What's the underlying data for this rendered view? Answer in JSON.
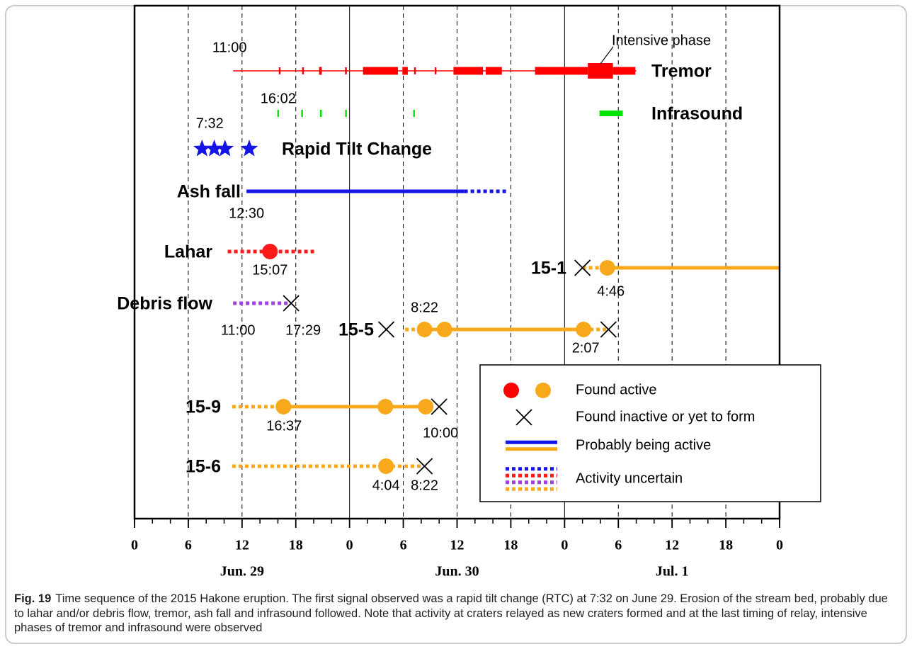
{
  "chart_data": {
    "type": "timeline",
    "xlim": [
      0,
      72
    ],
    "xticks": [
      0,
      6,
      12,
      18,
      {
        "value": 24,
        "label": "0"
      },
      {
        "value": 30,
        "label": "6"
      },
      {
        "value": 36,
        "label": "12"
      },
      {
        "value": 42,
        "label": "18"
      },
      {
        "value": 48,
        "label": "0"
      },
      {
        "value": 54,
        "label": "6"
      },
      {
        "value": 60,
        "label": "12"
      },
      {
        "value": 66,
        "label": "18"
      },
      {
        "value": 72,
        "label": "0"
      }
    ],
    "date_labels": [
      {
        "value": 12,
        "label": "Jun. 29"
      },
      {
        "value": 36,
        "label": "Jun. 30"
      },
      {
        "value": 60,
        "label": "Jul. 1"
      }
    ],
    "annotation": "Intensive phase",
    "rows": [
      {
        "name": "Tremor",
        "color": "#ff0000",
        "items": [
          {
            "kind": "line",
            "start": 11,
            "end": 56,
            "label": "11:00"
          },
          {
            "kind": "tick",
            "time": 16.2
          },
          {
            "kind": "tick",
            "time": 18.8
          },
          {
            "kind": "thick",
            "start": 20.6,
            "end": 20.9
          },
          {
            "kind": "tick",
            "time": 23.6
          },
          {
            "kind": "thick",
            "start": 25.5,
            "end": 29.4
          },
          {
            "kind": "thick",
            "start": 29.9,
            "end": 30.5
          },
          {
            "kind": "tick",
            "time": 31.3
          },
          {
            "kind": "tick",
            "time": 33.6
          },
          {
            "kind": "thick",
            "start": 35.6,
            "end": 38.9
          },
          {
            "kind": "thick",
            "start": 39.2,
            "end": 41
          },
          {
            "kind": "thick",
            "start": 44.7,
            "end": 50.6
          },
          {
            "kind": "intense",
            "start": 50.6,
            "end": 53.4
          },
          {
            "kind": "thick",
            "start": 53.4,
            "end": 55.9
          }
        ]
      },
      {
        "name": "Infrasound",
        "color": "#00e600",
        "items": [
          {
            "kind": "tick",
            "time": 16.03,
            "label": "16:02"
          },
          {
            "kind": "tick",
            "time": 18.7
          },
          {
            "kind": "tick",
            "time": 20.8
          },
          {
            "kind": "tick",
            "time": 23.6
          },
          {
            "kind": "tick",
            "time": 31.2
          },
          {
            "kind": "thick",
            "start": 51.9,
            "end": 54.5
          }
        ]
      },
      {
        "name": "Rapid Tilt Change",
        "color": "#1414e6",
        "items": [
          {
            "kind": "star",
            "time": 7.53,
            "label": "7:32"
          },
          {
            "kind": "star",
            "time": 8.9
          },
          {
            "kind": "star",
            "time": 10.1
          },
          {
            "kind": "star",
            "time": 12.8
          }
        ]
      },
      {
        "name": "Ash fall",
        "color": "#1414e6",
        "items": [
          {
            "kind": "solid",
            "start": 12.5,
            "end": 36.8,
            "label": "12:30"
          },
          {
            "kind": "dotted",
            "start": 36.8,
            "end": 41.6
          }
        ]
      },
      {
        "name": "Lahar",
        "color": "#ff1a1a",
        "items": [
          {
            "kind": "dotted",
            "start": 10.4,
            "end": 20.2
          },
          {
            "kind": "active",
            "time": 15.12,
            "label": "15:07"
          }
        ]
      },
      {
        "name": "15-1",
        "color": "#f7a81b",
        "items": [
          {
            "kind": "dotted",
            "start": 50,
            "end": 52.77
          },
          {
            "kind": "solid",
            "start": 52.77,
            "end": 72
          },
          {
            "kind": "inactive",
            "time": 50
          },
          {
            "kind": "active",
            "time": 52.77,
            "label": "4:46"
          }
        ]
      },
      {
        "name": "Debris flow",
        "color": "#a040e0",
        "items": [
          {
            "kind": "dotted",
            "start": 11,
            "end": 17.48,
            "label": "11:00"
          },
          {
            "kind": "inactive",
            "time": 17.48,
            "label": "17:29"
          }
        ]
      },
      {
        "name": "15-5",
        "color": "#f7a81b",
        "items": [
          {
            "kind": "inactive",
            "time": 28.1
          },
          {
            "kind": "dotted",
            "start": 30.2,
            "end": 32.37
          },
          {
            "kind": "solid",
            "start": 32.37,
            "end": 50.12
          },
          {
            "kind": "dotted",
            "start": 50.12,
            "end": 52.9
          },
          {
            "kind": "active",
            "time": 32.37,
            "label": "8:22"
          },
          {
            "kind": "active",
            "time": 34.6
          },
          {
            "kind": "active",
            "time": 50.12,
            "label": "2:07"
          },
          {
            "kind": "inactive",
            "time": 52.9
          }
        ]
      },
      {
        "name": "15-9",
        "color": "#f7a81b",
        "items": [
          {
            "kind": "dotted",
            "start": 10.9,
            "end": 16.62
          },
          {
            "kind": "solid",
            "start": 16.62,
            "end": 32.5
          },
          {
            "kind": "active",
            "time": 16.62,
            "label": "16:37"
          },
          {
            "kind": "active",
            "time": 28
          },
          {
            "kind": "active",
            "time": 32.5
          },
          {
            "kind": "inactive",
            "time": 34,
            "label": "10:00"
          }
        ]
      },
      {
        "name": "15-6",
        "color": "#f7a81b",
        "items": [
          {
            "kind": "dotted",
            "start": 10.9,
            "end": 32.37
          },
          {
            "kind": "active",
            "time": 28.07,
            "label": "4:04"
          },
          {
            "kind": "inactive",
            "time": 32.37,
            "label": "8:22"
          }
        ]
      }
    ],
    "legend": [
      {
        "text": "Found active",
        "marks": [
          {
            "kind": "active",
            "color": "#ff0000"
          },
          {
            "kind": "active",
            "color": "#f7a81b"
          }
        ]
      },
      {
        "text": "Found inactive or yet to form",
        "marks": [
          {
            "kind": "inactive",
            "color": "#000000"
          }
        ]
      },
      {
        "text": "Probably being active",
        "marks": [
          {
            "kind": "solid",
            "color": "#1414e6"
          },
          {
            "kind": "solid",
            "color": "#f7a81b"
          }
        ]
      },
      {
        "text": "Activity uncertain",
        "marks": [
          {
            "kind": "dotted",
            "color": "#1414e6"
          },
          {
            "kind": "dotted",
            "color": "#ff1a1a"
          },
          {
            "kind": "dotted",
            "color": "#a040e0"
          },
          {
            "kind": "dotted",
            "color": "#f7a81b"
          }
        ]
      }
    ]
  },
  "caption": {
    "label": "Fig. 19",
    "text": "Time sequence of the 2015 Hakone eruption. The first signal observed was a rapid tilt change (RTC) at 7:32 on June 29. Erosion of the stream bed, probably due to lahar and/or debris flow, tremor, ash fall and infrasound followed. Note that activity at craters relayed as new craters formed and at the last timing of relay, intensive phases of tremor and infrasound were observed"
  }
}
